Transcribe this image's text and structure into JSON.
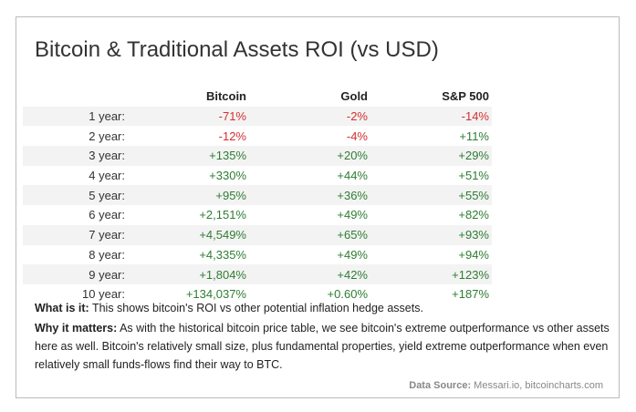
{
  "title": "Bitcoin & Traditional Assets ROI (vs USD)",
  "table": {
    "header": [
      "Bitcoin",
      "Gold",
      "S&P 500"
    ],
    "rows": [
      [
        "1 year:",
        "-71%",
        "-2%",
        "-14%"
      ],
      [
        "2 year:",
        "-12%",
        "-4%",
        "+11%"
      ],
      [
        "3 year:",
        "+135%",
        "+20%",
        "+29%"
      ],
      [
        "4 year:",
        "+330%",
        "+44%",
        "+51%"
      ],
      [
        "5 year:",
        "+95%",
        "+36%",
        "+55%"
      ],
      [
        "6 year:",
        "+2,151%",
        "+49%",
        "+82%"
      ],
      [
        "7 year:",
        "+4,549%",
        "+65%",
        "+93%"
      ],
      [
        "8 year:",
        "+4,335%",
        "+49%",
        "+94%"
      ],
      [
        "9 year:",
        "+1,804%",
        "+42%",
        "+123%"
      ],
      [
        "10 year:",
        "+134,037%",
        "+0.60%",
        "+187%"
      ]
    ]
  },
  "notes": [
    {
      "label": "What is it:",
      "text": "This shows bitcoin's ROI vs other potential inflation hedge assets."
    },
    {
      "label": "Why it matters:",
      "text": "As with the historical bitcoin price table, we see bitcoin's extreme outperformance vs other assets here as well. Bitcoin's relatively small size, plus fundamental properties, yield extreme outperformance when even relatively small funds-flows find their way to BTC."
    }
  ],
  "source": {
    "label": "Data Source:",
    "text": "Messari.io, bitcoincharts.com"
  }
}
